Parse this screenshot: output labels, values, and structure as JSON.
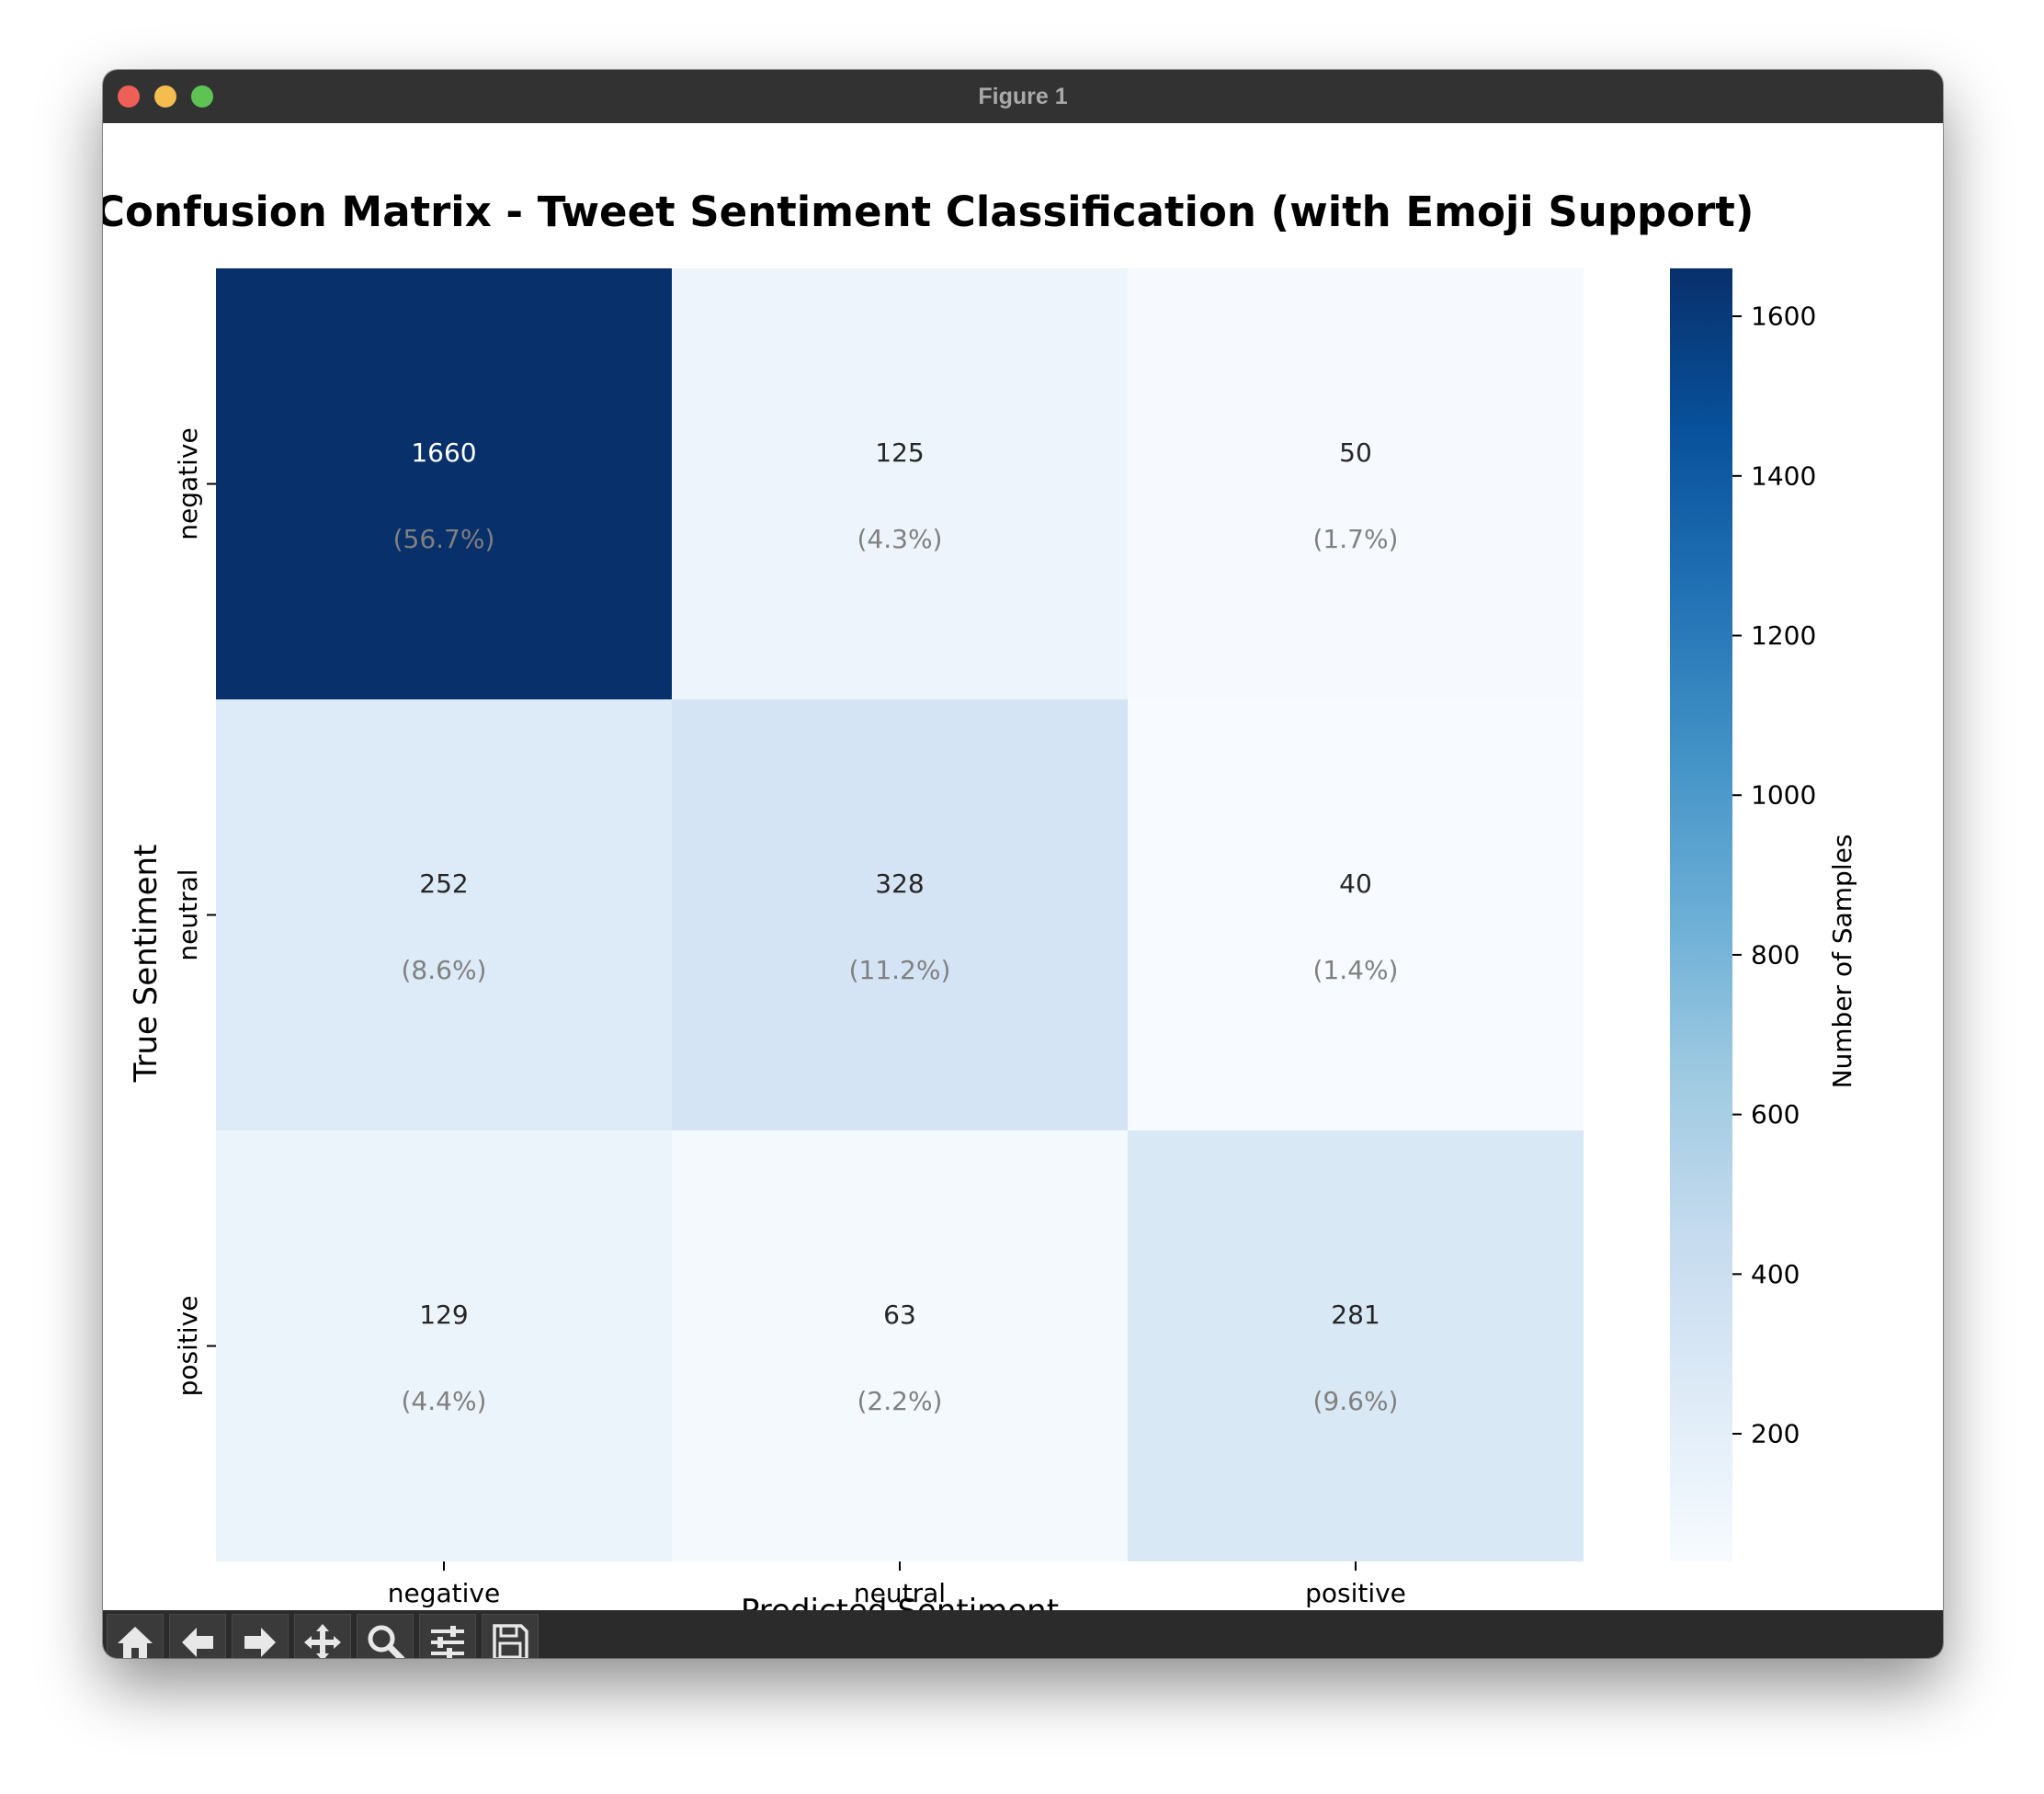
{
  "window": {
    "title": "Figure 1"
  },
  "toolbar": {
    "items": [
      {
        "name": "home-button",
        "icon": "home-icon"
      },
      {
        "name": "back-button",
        "icon": "arrow-left-icon"
      },
      {
        "name": "forward-button",
        "icon": "arrow-right-icon"
      },
      {
        "name": "pan-button",
        "icon": "move-icon"
      },
      {
        "name": "zoom-button",
        "icon": "magnifier-icon"
      },
      {
        "name": "configure-subplots-button",
        "icon": "sliders-icon"
      },
      {
        "name": "save-button",
        "icon": "floppy-disk-icon"
      }
    ]
  },
  "chart_data": {
    "type": "heatmap",
    "title": "Confusion Matrix - Tweet Sentiment Classification (with Emoji Support)",
    "xlabel": "Predicted Sentiment",
    "ylabel": "True Sentiment",
    "x_categories": [
      "negative",
      "neutral",
      "positive"
    ],
    "y_categories": [
      "negative",
      "neutral",
      "positive"
    ],
    "values": [
      [
        1660,
        125,
        50
      ],
      [
        252,
        328,
        40
      ],
      [
        129,
        63,
        281
      ]
    ],
    "percent_labels": [
      [
        "(56.7%)",
        "(4.3%)",
        "(1.7%)"
      ],
      [
        "(8.6%)",
        "(11.2%)",
        "(1.4%)"
      ],
      [
        "(4.4%)",
        "(2.2%)",
        "(9.6%)"
      ]
    ],
    "colormap": "Blues",
    "colorbar": {
      "label": "Number of Samples",
      "vmin": 40,
      "vmax": 1660,
      "ticks": [
        200,
        400,
        600,
        800,
        1000,
        1200,
        1400,
        1600
      ]
    },
    "grid": false
  }
}
